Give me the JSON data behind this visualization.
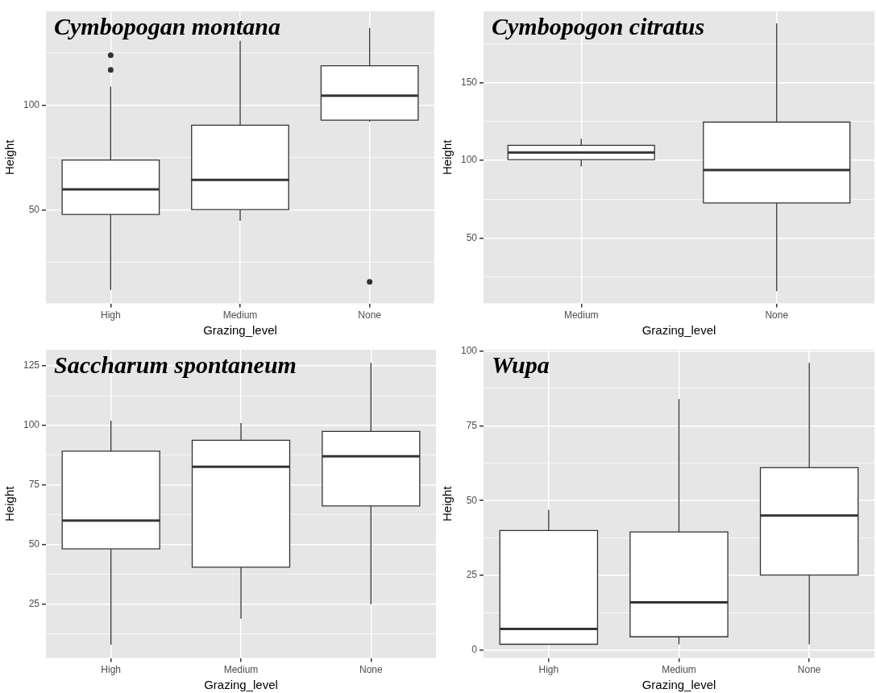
{
  "chart_data": [
    {
      "type": "box",
      "title": "Cymbopogan montana",
      "xlabel": "Grazing_level",
      "ylabel": "Height",
      "categories": [
        "High",
        "Medium",
        "None"
      ],
      "boxes": [
        {
          "low": 12,
          "q1": 48,
          "median": 60,
          "q3": 74,
          "high": 109,
          "outliers": [
            124,
            117
          ]
        },
        {
          "low": 45,
          "q1": 50.3,
          "median": 64.5,
          "q3": 90.6,
          "high": 131
        },
        {
          "low": 92.3,
          "q1": 93,
          "median": 104.7,
          "q3": 119,
          "high": 137,
          "outliers": [
            15.8
          ]
        }
      ],
      "ylim": [
        5.5,
        145
      ],
      "yticks": [
        {
          "value": 25,
          "label": null
        },
        50,
        {
          "value": 75,
          "label": null
        },
        100,
        {
          "value": 125,
          "label": null
        }
      ],
      "grid": true
    },
    {
      "type": "box",
      "title": "Cymbopogon citratus",
      "xlabel": "Grazing_level",
      "ylabel": "Height",
      "categories": [
        "Medium",
        "None"
      ],
      "boxes": [
        {
          "low": 96.2,
          "q1": 100.5,
          "median": 105.2,
          "q3": 109.7,
          "high": 113.9
        },
        {
          "low": 16,
          "q1": 72.7,
          "median": 93.8,
          "q3": 124.7,
          "high": 188.2
        }
      ],
      "ylim": [
        8,
        196
      ],
      "yticks": [
        {
          "value": 25,
          "label": null
        },
        50,
        {
          "value": 75,
          "label": null
        },
        100,
        {
          "value": 125,
          "label": null
        },
        150,
        {
          "value": 175,
          "label": null
        }
      ],
      "grid": true
    },
    {
      "type": "box",
      "title": "Saccharum spontaneum",
      "xlabel": "Grazing_level",
      "ylabel": "Height",
      "categories": [
        "High",
        "Medium",
        "None"
      ],
      "boxes": [
        {
          "low": 8,
          "q1": 48.2,
          "median": 60.1,
          "q3": 89.2,
          "high": 102
        },
        {
          "low": 18.9,
          "q1": 40.5,
          "median": 82.7,
          "q3": 93.8,
          "high": 101
        },
        {
          "low": 25,
          "q1": 66.2,
          "median": 87.1,
          "q3": 97.5,
          "high": 126.3
        }
      ],
      "ylim": [
        2.4,
        131.8
      ],
      "yticks": [
        {
          "value": 12.5,
          "label": null
        },
        25,
        {
          "value": 37.5,
          "label": null
        },
        50,
        {
          "value": 62.5,
          "label": null
        },
        75,
        {
          "value": 87.5,
          "label": null
        },
        100,
        {
          "value": 112.5,
          "label": null
        },
        125
      ],
      "grid": true
    },
    {
      "type": "box",
      "title": "Wupa",
      "xlabel": "Grazing_level",
      "ylabel": "Height",
      "categories": [
        "High",
        "Medium",
        "None"
      ],
      "boxes": [
        {
          "low": 2,
          "q1": 2,
          "median": 7.1,
          "q3": 40,
          "high": 46.9
        },
        {
          "low": 2,
          "q1": 4.5,
          "median": 16,
          "q3": 39.5,
          "high": 83.9
        },
        {
          "low": 2,
          "q1": 25.1,
          "median": 45,
          "q3": 61,
          "high": 96
        }
      ],
      "ylim": [
        -2.6,
        100.4
      ],
      "yticks": [
        0,
        {
          "value": 12.5,
          "label": null
        },
        25,
        {
          "value": 37.5,
          "label": null
        },
        50,
        {
          "value": 62.5,
          "label": null
        },
        75,
        {
          "value": 87.5,
          "label": null
        },
        100
      ],
      "grid": true
    }
  ]
}
